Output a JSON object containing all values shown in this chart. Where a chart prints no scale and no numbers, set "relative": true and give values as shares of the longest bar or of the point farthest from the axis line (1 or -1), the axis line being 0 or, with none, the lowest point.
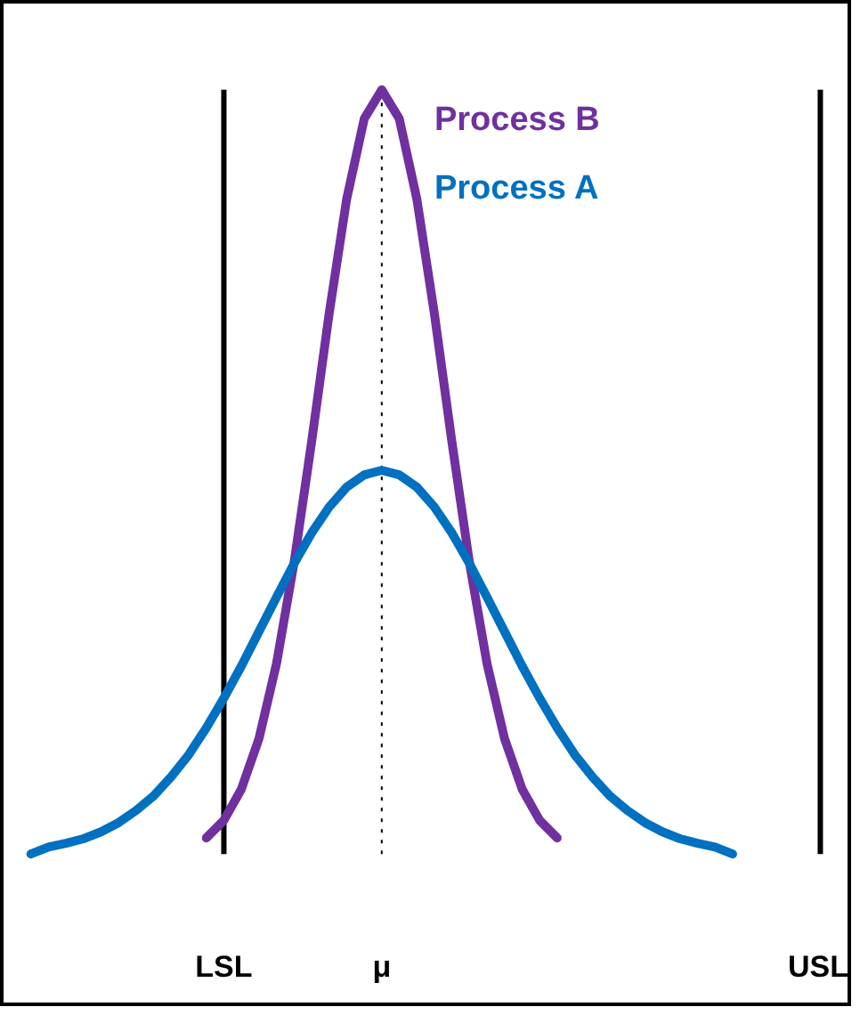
{
  "chart_data": {
    "type": "line",
    "relative": true,
    "legend": false,
    "marker": "none",
    "line_style": "solid",
    "categories": [
      null,
      null,
      null,
      null,
      null,
      null,
      null,
      null,
      null,
      null,
      null,
      "LSL",
      null,
      null,
      null,
      null,
      null,
      null,
      null,
      null,
      "μ",
      null,
      null,
      null,
      null,
      null,
      null,
      null,
      null,
      null,
      null,
      null,
      null,
      null,
      null,
      null,
      null,
      null,
      null,
      null,
      null,
      null,
      null,
      null,
      null,
      "USL"
    ],
    "series": [
      {
        "name": "Process B",
        "color": "#7030a0",
        "values": [
          null,
          null,
          null,
          null,
          null,
          null,
          null,
          null,
          null,
          null,
          0.021,
          0.044,
          0.085,
          0.151,
          0.249,
          0.381,
          0.539,
          0.707,
          0.857,
          0.962,
          1,
          0.962,
          0.857,
          0.707,
          0.539,
          0.381,
          0.249,
          0.151,
          0.085,
          0.044,
          0.021,
          null,
          null,
          null,
          null,
          null,
          null,
          null,
          null,
          null,
          null,
          null,
          null,
          null,
          null,
          null
        ]
      },
      {
        "name": "Process A",
        "color": "#0070c0",
        "values": [
          0,
          0.009,
          0.014,
          0.02,
          0.029,
          0.041,
          0.057,
          0.076,
          0.101,
          0.13,
          0.165,
          0.204,
          0.246,
          0.291,
          0.336,
          0.38,
          0.42,
          0.454,
          0.48,
          0.496,
          0.502,
          0.496,
          0.48,
          0.454,
          0.42,
          0.38,
          0.336,
          0.291,
          0.246,
          0.204,
          0.165,
          0.13,
          0.101,
          0.076,
          0.057,
          0.041,
          0.029,
          0.02,
          0.014,
          0.009,
          0,
          null,
          null,
          null,
          null,
          null
        ]
      }
    ],
    "ref_lines": [
      {
        "axis": "x",
        "value": "LSL",
        "color": "#000000",
        "line_style": "solid"
      },
      {
        "axis": "x",
        "value": "μ",
        "color": "#000000",
        "line_style": "dotted"
      },
      {
        "axis": "x",
        "value": "USL",
        "color": "#000000",
        "line_style": "solid"
      }
    ]
  }
}
